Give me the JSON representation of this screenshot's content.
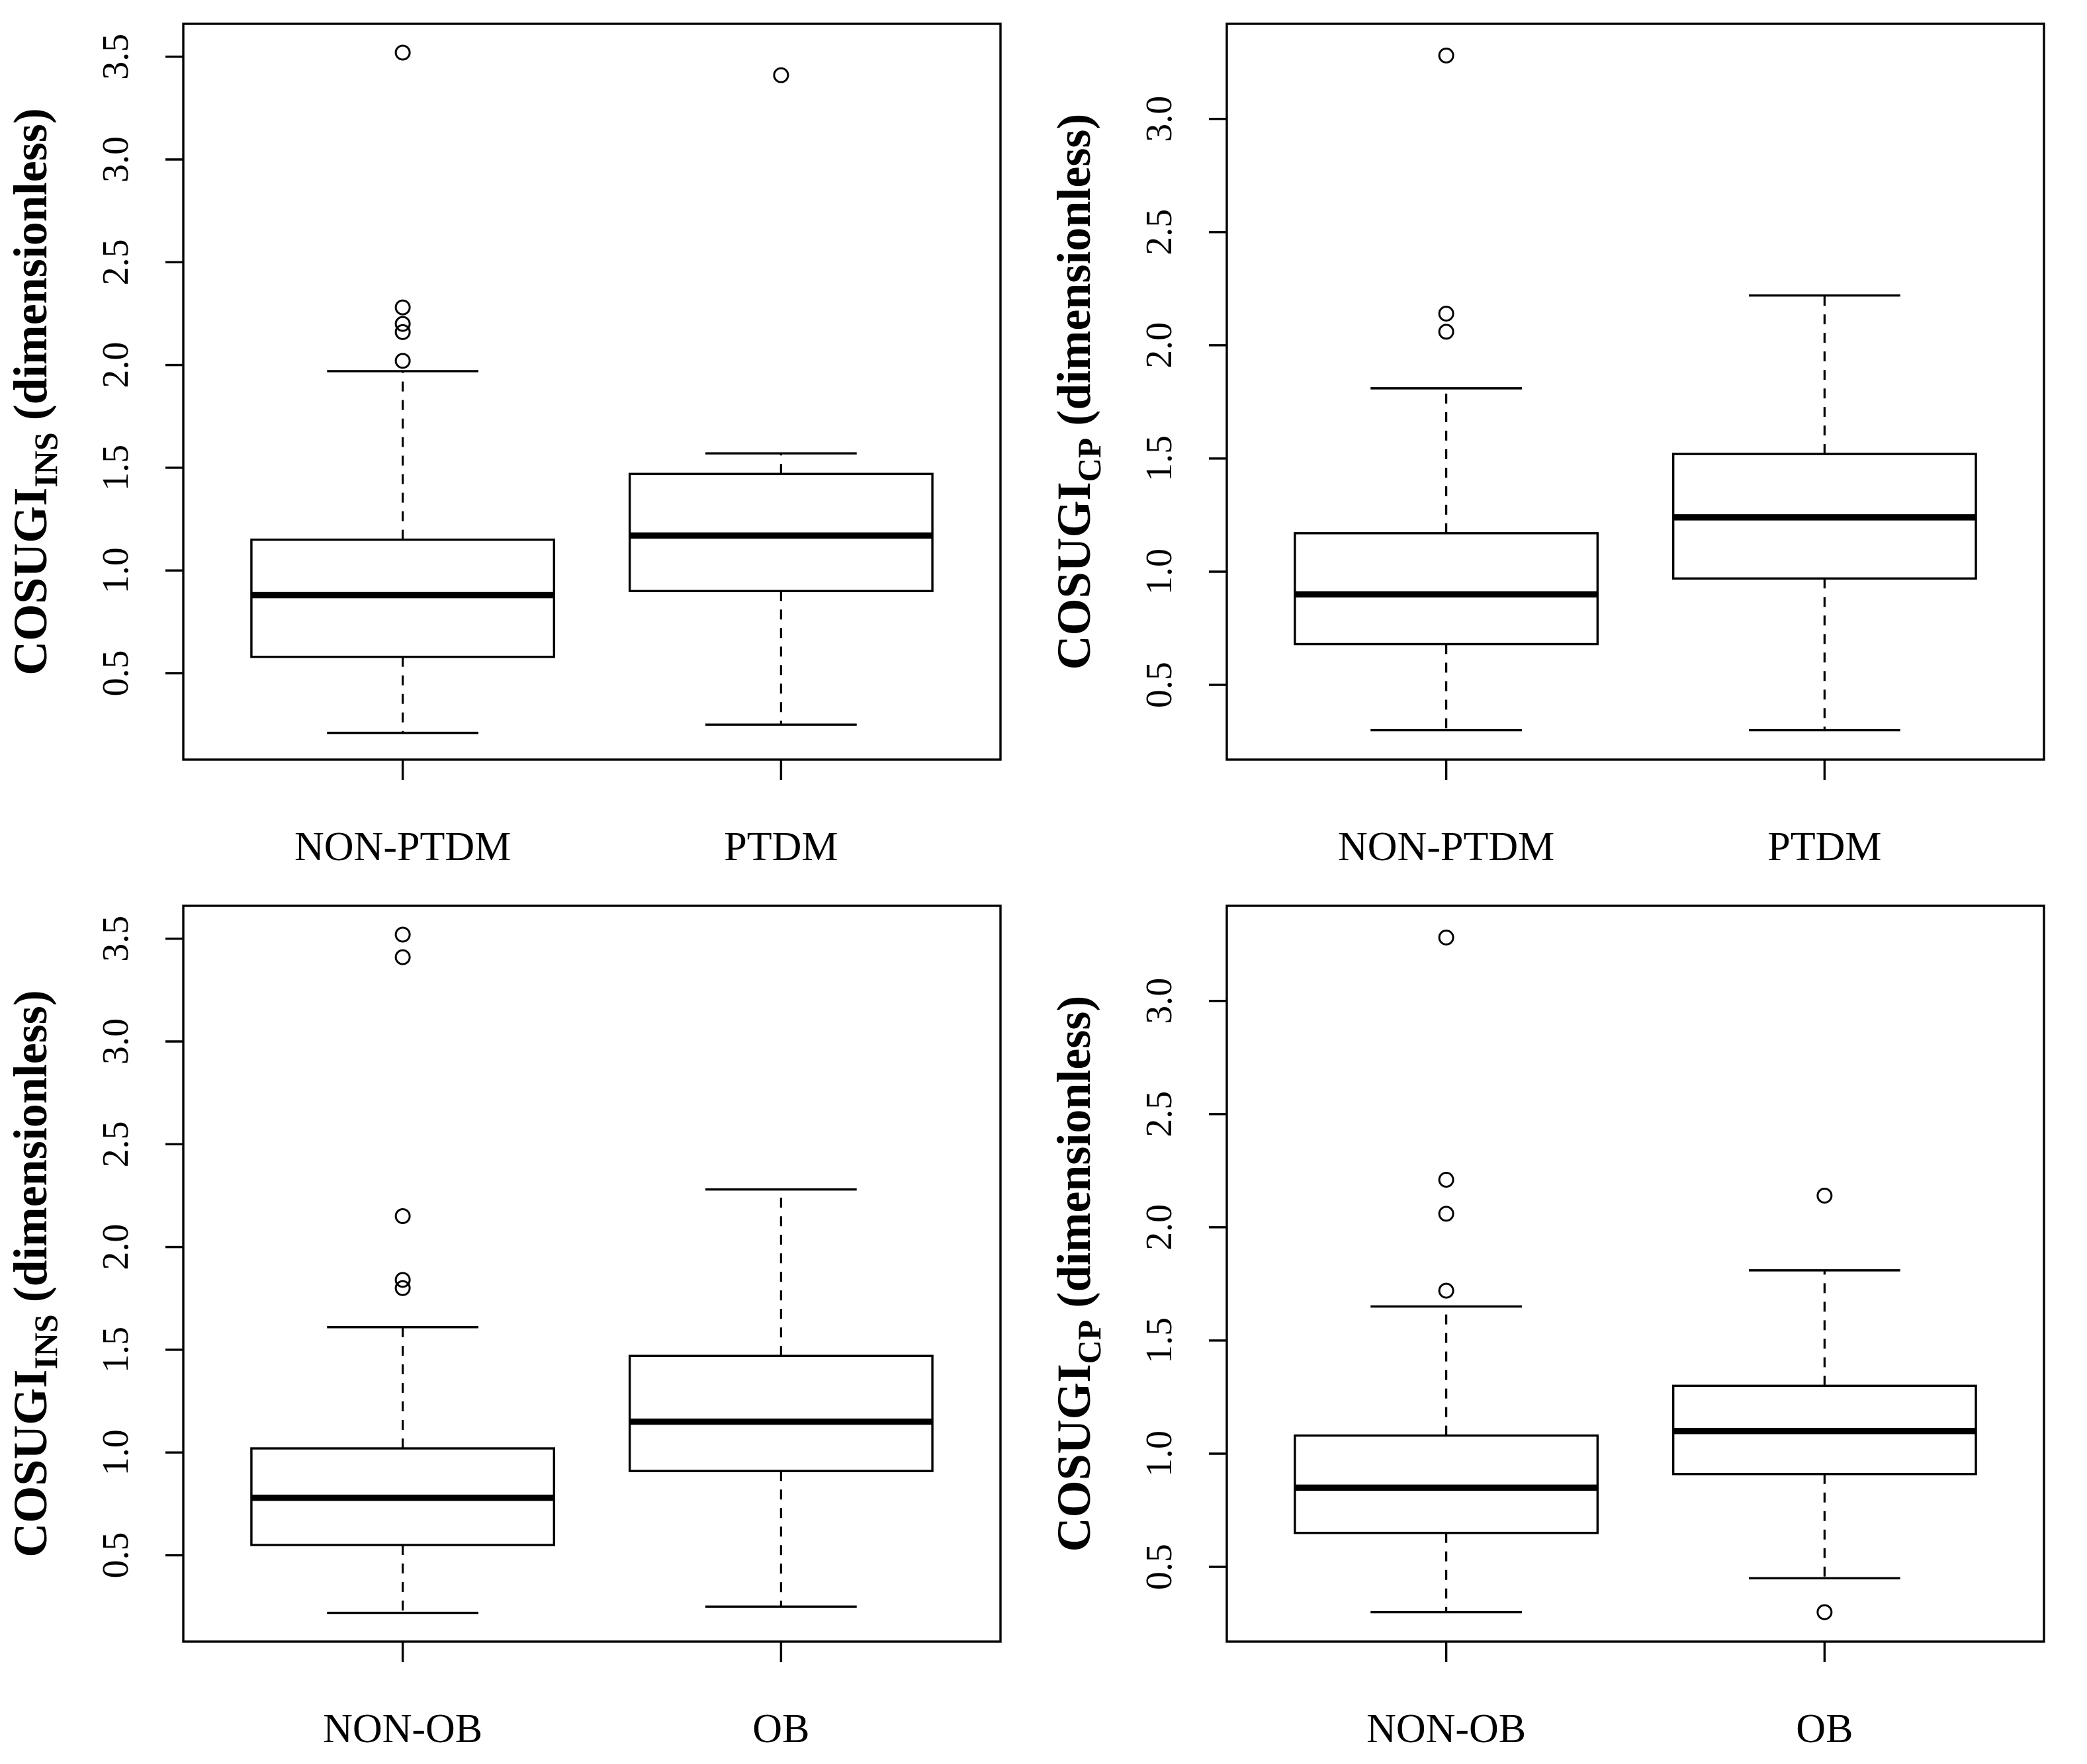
{
  "figure": {
    "background_color": "#ffffff",
    "line_color": "#000000",
    "text_color": "#000000"
  },
  "chart_data": [
    {
      "type": "boxplot",
      "panel": "top-left",
      "ylabel_text": "COSUGI_INS (dimensionless)",
      "ylabel": {
        "prefix": "COSUGI",
        "subscript": "INS",
        "suffix": " (dimensionless)"
      },
      "categories": [
        "NON-PTDM",
        "PTDM"
      ],
      "ytick_labels": [
        "0.5",
        "1.0",
        "1.5",
        "2.0",
        "2.5",
        "3.0",
        "3.5"
      ],
      "yticks": [
        0.5,
        1.0,
        1.5,
        2.0,
        2.5,
        3.0,
        3.5
      ],
      "ylim": [
        0.08,
        3.66
      ],
      "grid": false,
      "boxes": [
        {
          "category": "NON-PTDM",
          "whisker_low": 0.21,
          "q1": 0.58,
          "median": 0.88,
          "q3": 1.15,
          "whisker_high": 1.97,
          "outliers": [
            2.02,
            2.16,
            2.2,
            2.28,
            3.52
          ]
        },
        {
          "category": "PTDM",
          "whisker_low": 0.25,
          "q1": 0.9,
          "median": 1.17,
          "q3": 1.47,
          "whisker_high": 1.57,
          "outliers": [
            3.41
          ]
        }
      ]
    },
    {
      "type": "boxplot",
      "panel": "top-right",
      "ylabel_text": "COSUGI_CP (dimensionless)",
      "ylabel": {
        "prefix": "COSUGI",
        "subscript": "CP",
        "suffix": " (dimensionless)"
      },
      "categories": [
        "NON-PTDM",
        "PTDM"
      ],
      "ytick_labels": [
        "0.5",
        "1.0",
        "1.5",
        "2.0",
        "2.5",
        "3.0"
      ],
      "yticks": [
        0.5,
        1.0,
        1.5,
        2.0,
        2.5,
        3.0
      ],
      "ylim": [
        0.17,
        3.42
      ],
      "grid": false,
      "boxes": [
        {
          "category": "NON-PTDM",
          "whisker_low": 0.3,
          "q1": 0.68,
          "median": 0.9,
          "q3": 1.17,
          "whisker_high": 1.81,
          "outliers": [
            2.06,
            2.14,
            3.28
          ]
        },
        {
          "category": "PTDM",
          "whisker_low": 0.3,
          "q1": 0.97,
          "median": 1.24,
          "q3": 1.52,
          "whisker_high": 2.22,
          "outliers": []
        }
      ]
    },
    {
      "type": "boxplot",
      "panel": "bottom-left",
      "ylabel_text": "COSUGI_INS (dimensionless)",
      "ylabel": {
        "prefix": "COSUGI",
        "subscript": "INS",
        "suffix": " (dimensionless)"
      },
      "categories": [
        "NON-OB",
        "OB"
      ],
      "ytick_labels": [
        "0.5",
        "1.0",
        "1.5",
        "2.0",
        "2.5",
        "3.0",
        "3.5"
      ],
      "yticks": [
        0.5,
        1.0,
        1.5,
        2.0,
        2.5,
        3.0,
        3.5
      ],
      "ylim": [
        0.08,
        3.66
      ],
      "grid": false,
      "boxes": [
        {
          "category": "NON-OB",
          "whisker_low": 0.22,
          "q1": 0.55,
          "median": 0.78,
          "q3": 1.02,
          "whisker_high": 1.61,
          "outliers": [
            1.8,
            1.84,
            2.15,
            3.41,
            3.52
          ]
        },
        {
          "category": "OB",
          "whisker_low": 0.25,
          "q1": 0.91,
          "median": 1.15,
          "q3": 1.47,
          "whisker_high": 2.28,
          "outliers": []
        }
      ]
    },
    {
      "type": "boxplot",
      "panel": "bottom-right",
      "ylabel_text": "COSUGI_CP (dimensionless)",
      "ylabel": {
        "prefix": "COSUGI",
        "subscript": "CP",
        "suffix": " (dimensionless)"
      },
      "categories": [
        "NON-OB",
        "OB"
      ],
      "ytick_labels": [
        "0.5",
        "1.0",
        "1.5",
        "2.0",
        "2.5",
        "3.0"
      ],
      "yticks": [
        0.5,
        1.0,
        1.5,
        2.0,
        2.5,
        3.0
      ],
      "ylim": [
        0.17,
        3.42
      ],
      "grid": false,
      "boxes": [
        {
          "category": "NON-OB",
          "whisker_low": 0.3,
          "q1": 0.65,
          "median": 0.85,
          "q3": 1.08,
          "whisker_high": 1.65,
          "outliers": [
            1.72,
            2.06,
            2.21,
            3.28
          ]
        },
        {
          "category": "OB",
          "whisker_low": 0.45,
          "q1": 0.91,
          "median": 1.1,
          "q3": 1.3,
          "whisker_high": 1.81,
          "outliers": [
            0.3,
            2.14
          ]
        }
      ]
    }
  ]
}
